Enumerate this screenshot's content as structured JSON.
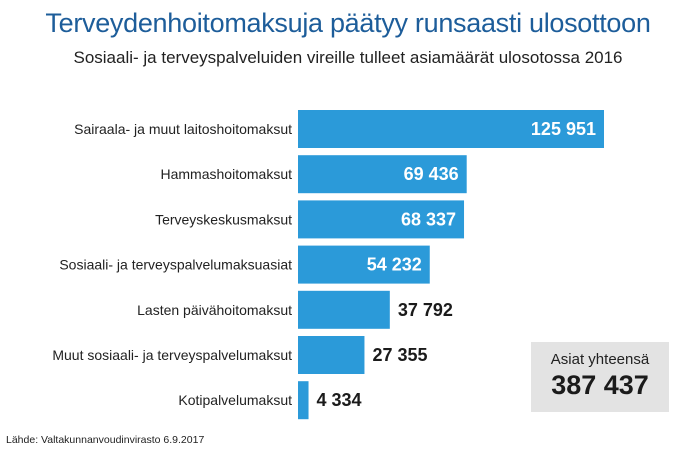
{
  "title": "Terveydenhoitomaksuja päätyy runsaasti ulosottoon",
  "subtitle": "Sosiaali- ja terveyspalveluiden vireille tulleet asiamäärät ulosotossa 2016",
  "chart_data": {
    "type": "bar",
    "orientation": "horizontal",
    "categories": [
      "Sairaala- ja muut laitoshoitomaksut",
      "Hammashoitomaksut",
      "Terveyskeskusmaksut",
      "Sosiaali- ja terveyspalvelumaksuasiat",
      "Lasten päivähoitomaksut",
      "Muut sosiaali- ja terveyspalvelumaksut",
      "Kotipalvelumaksut"
    ],
    "values": [
      125951,
      69436,
      68337,
      54232,
      37792,
      27355,
      4334
    ],
    "value_labels": [
      "125 951",
      "69 436",
      "68 337",
      "54 232",
      "37 792",
      "27 355",
      "4 334"
    ],
    "bar_color": "#2b9ad9",
    "grid": false,
    "legend": "none"
  },
  "total": {
    "label": "Asiat yhteensä",
    "value": "387 437"
  },
  "source": "Lähde: Valtakunnanvoudinvirasto 6.9.2017"
}
